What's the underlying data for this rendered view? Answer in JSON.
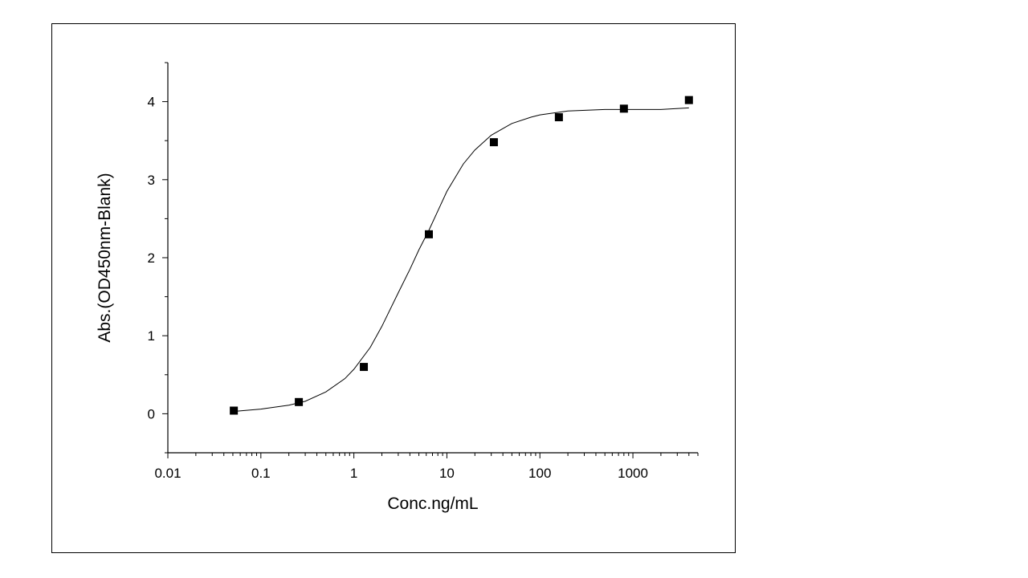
{
  "chart_data": {
    "type": "scatter",
    "xlabel": "Conc.ng/mL",
    "ylabel": "Abs.(OD450nm-Blank)",
    "x_scale": "log",
    "xlim": [
      0.01,
      5000
    ],
    "ylim": [
      -0.5,
      4.5
    ],
    "x_ticks": [
      0.01,
      0.1,
      1,
      10,
      100,
      1000
    ],
    "x_tick_labels": [
      "0.01",
      "0.1",
      "1",
      "10",
      "100",
      "1000"
    ],
    "y_ticks": [
      0,
      1,
      2,
      3,
      4
    ],
    "y_tick_labels": [
      "0",
      "1",
      "2",
      "3",
      "4"
    ],
    "grid": false,
    "legend": "none",
    "marker": "square",
    "color": "#000000",
    "series": [
      {
        "x": [
          0.0512,
          0.256,
          1.28,
          6.4,
          32,
          160,
          800,
          4000
        ],
        "y": [
          0.04,
          0.15,
          0.6,
          2.3,
          3.48,
          3.8,
          3.91,
          4.02
        ]
      }
    ],
    "fit_curve": {
      "model": "4PL",
      "x": [
        0.0512,
        0.1,
        0.2,
        0.3,
        0.5,
        0.8,
        1,
        1.5,
        2,
        3,
        4,
        5,
        6.4,
        8,
        10,
        15,
        20,
        30,
        50,
        80,
        100,
        200,
        500,
        1000,
        2000,
        4000
      ],
      "y": [
        0.03,
        0.06,
        0.11,
        0.16,
        0.28,
        0.45,
        0.57,
        0.85,
        1.12,
        1.55,
        1.85,
        2.1,
        2.35,
        2.6,
        2.85,
        3.2,
        3.38,
        3.57,
        3.72,
        3.8,
        3.83,
        3.88,
        3.9,
        3.9,
        3.9,
        3.92
      ]
    }
  }
}
